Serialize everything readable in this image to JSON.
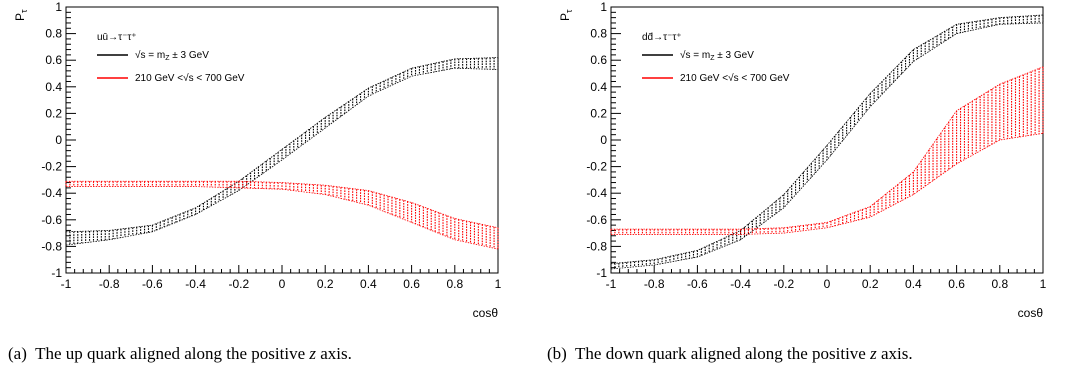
{
  "chart_data": [
    {
      "type": "band",
      "process": "uū→τ⁻τ⁺",
      "ylabel": "P",
      "ylabel_sub": "τ",
      "xlabel": "cosθ",
      "xlim": [
        -1,
        1
      ],
      "ylim": [
        -1,
        1
      ],
      "xticks": [
        "-1",
        "-0.8",
        "-0.6",
        "-0.4",
        "-0.2",
        "0",
        "0.2",
        "0.4",
        "0.6",
        "0.8",
        "1"
      ],
      "yticks": [
        "-1",
        "-0.8",
        "-0.6",
        "-0.4",
        "-0.2",
        "0",
        "0.2",
        "0.4",
        "0.6",
        "0.8",
        "1"
      ],
      "legend_position": "top-left",
      "series": [
        {
          "name": "√s = m_Z ± 3 GeV",
          "legend_main": "√s = m",
          "legend_sub": "Z",
          "legend_tail": " ± 3 GeV",
          "color": "#000000",
          "x": [
            -1,
            -0.8,
            -0.6,
            -0.4,
            -0.2,
            0,
            0.2,
            0.4,
            0.6,
            0.8,
            1
          ],
          "low": [
            -0.79,
            -0.75,
            -0.69,
            -0.56,
            -0.38,
            -0.15,
            0.09,
            0.33,
            0.48,
            0.54,
            0.53
          ],
          "high": [
            -0.69,
            -0.68,
            -0.64,
            -0.51,
            -0.31,
            -0.07,
            0.17,
            0.39,
            0.54,
            0.61,
            0.62
          ]
        },
        {
          "name": "210 GeV <√s < 700 GeV",
          "legend_main": "210 GeV <√s < 700 GeV",
          "color": "#ff0000",
          "x": [
            -1,
            -0.8,
            -0.6,
            -0.4,
            -0.2,
            0,
            0.2,
            0.4,
            0.6,
            0.8,
            1
          ],
          "low": [
            -0.35,
            -0.35,
            -0.35,
            -0.35,
            -0.36,
            -0.37,
            -0.41,
            -0.49,
            -0.62,
            -0.75,
            -0.82
          ],
          "high": [
            -0.31,
            -0.31,
            -0.31,
            -0.31,
            -0.31,
            -0.32,
            -0.34,
            -0.38,
            -0.47,
            -0.59,
            -0.66
          ]
        }
      ]
    },
    {
      "type": "band",
      "process": "dd̄→τ⁻τ⁺",
      "ylabel": "P",
      "ylabel_sub": "τ",
      "xlabel": "cosθ",
      "xlim": [
        -1,
        1
      ],
      "ylim": [
        -1,
        1
      ],
      "xticks": [
        "-1",
        "-0.8",
        "-0.6",
        "-0.4",
        "-0.2",
        "0",
        "0.2",
        "0.4",
        "0.6",
        "0.8",
        "1"
      ],
      "yticks": [
        "-1",
        "-0.8",
        "-0.6",
        "-0.4",
        "-0.2",
        "0",
        "0.2",
        "0.4",
        "0.6",
        "0.8",
        "1"
      ],
      "legend_position": "top-left",
      "series": [
        {
          "name": "√s = m_Z ± 3 GeV",
          "legend_main": "√s = m",
          "legend_sub": "Z",
          "legend_tail": " ± 3 GeV",
          "color": "#000000",
          "x": [
            -1,
            -0.8,
            -0.6,
            -0.4,
            -0.2,
            0,
            0.2,
            0.4,
            0.6,
            0.8,
            1
          ],
          "low": [
            -0.97,
            -0.94,
            -0.88,
            -0.75,
            -0.51,
            -0.15,
            0.25,
            0.59,
            0.8,
            0.87,
            0.88
          ],
          "high": [
            -0.93,
            -0.9,
            -0.83,
            -0.68,
            -0.41,
            -0.04,
            0.35,
            0.68,
            0.87,
            0.92,
            0.94
          ]
        },
        {
          "name": "210 GeV <√s < 700 GeV",
          "legend_main": "210 GeV <√s < 700 GeV",
          "color": "#ff0000",
          "x": [
            -1,
            -0.8,
            -0.6,
            -0.4,
            -0.2,
            0,
            0.2,
            0.4,
            0.6,
            0.8,
            1
          ],
          "low": [
            -0.71,
            -0.71,
            -0.71,
            -0.71,
            -0.7,
            -0.66,
            -0.58,
            -0.41,
            -0.18,
            0.0,
            0.05
          ],
          "high": [
            -0.67,
            -0.67,
            -0.67,
            -0.67,
            -0.66,
            -0.62,
            -0.5,
            -0.24,
            0.22,
            0.42,
            0.55
          ]
        }
      ]
    }
  ],
  "captions": [
    {
      "label": "(a)",
      "text": "The up quark aligned along the positive",
      "axis": "z",
      "tail": "axis."
    },
    {
      "label": "(b)",
      "text": "The down quark aligned along the positive",
      "axis": "z",
      "tail": "axis."
    }
  ]
}
